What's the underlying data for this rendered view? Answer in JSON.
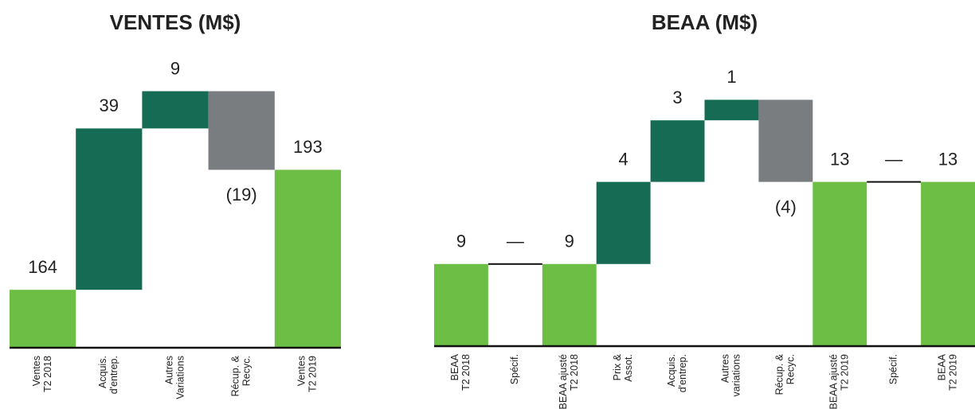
{
  "chart_data": [
    {
      "type": "waterfall",
      "title": "VENTES (M$)",
      "categories": [
        [
          "Ventes",
          "T2 2018"
        ],
        [
          "Acquis.",
          "d'entrep."
        ],
        [
          "Autres",
          "Variations"
        ],
        [
          "Récup. &",
          "Recyc."
        ],
        [
          "Ventes",
          "T2 2019"
        ]
      ],
      "values": [
        164,
        39,
        9,
        -19,
        193
      ],
      "value_labels": [
        "164",
        "39",
        "9",
        "(19)",
        "193"
      ],
      "measure": [
        "absolute",
        "relative",
        "relative",
        "relative",
        "absolute"
      ],
      "colors": {
        "total": "#6dbe45",
        "increase": "#166b55",
        "decrease": "#7a7d7f",
        "zero": "#111111"
      },
      "ylim": [
        150,
        230
      ]
    },
    {
      "type": "waterfall",
      "title": "BEAA (M$)",
      "categories": [
        [
          "BEAA",
          "T2 2018"
        ],
        [
          "Spécif."
        ],
        [
          "BEAA ajusté",
          "T2 2018"
        ],
        [
          "Prix &",
          "Assot."
        ],
        [
          "Acquis.",
          "d'entrep."
        ],
        [
          "Autres",
          "variations"
        ],
        [
          "Récup. &",
          "Recyc."
        ],
        [
          "BEAA ajusté",
          "T2 2019"
        ],
        [
          "Spécif."
        ],
        [
          "BEAA",
          "T2 2019"
        ]
      ],
      "values": [
        9,
        0,
        9,
        4,
        3,
        1,
        -4,
        13,
        0,
        13
      ],
      "value_labels": [
        "9",
        "—",
        "9",
        "4",
        "3",
        "1",
        "(4)",
        "13",
        "—",
        "13"
      ],
      "measure": [
        "absolute",
        "relative",
        "absolute",
        "relative",
        "relative",
        "relative",
        "relative",
        "absolute",
        "relative",
        "absolute"
      ],
      "colors": {
        "total": "#6dbe45",
        "increase": "#166b55",
        "decrease": "#7a7d7f",
        "zero": "#111111"
      },
      "ylim": [
        5,
        20
      ]
    }
  ]
}
